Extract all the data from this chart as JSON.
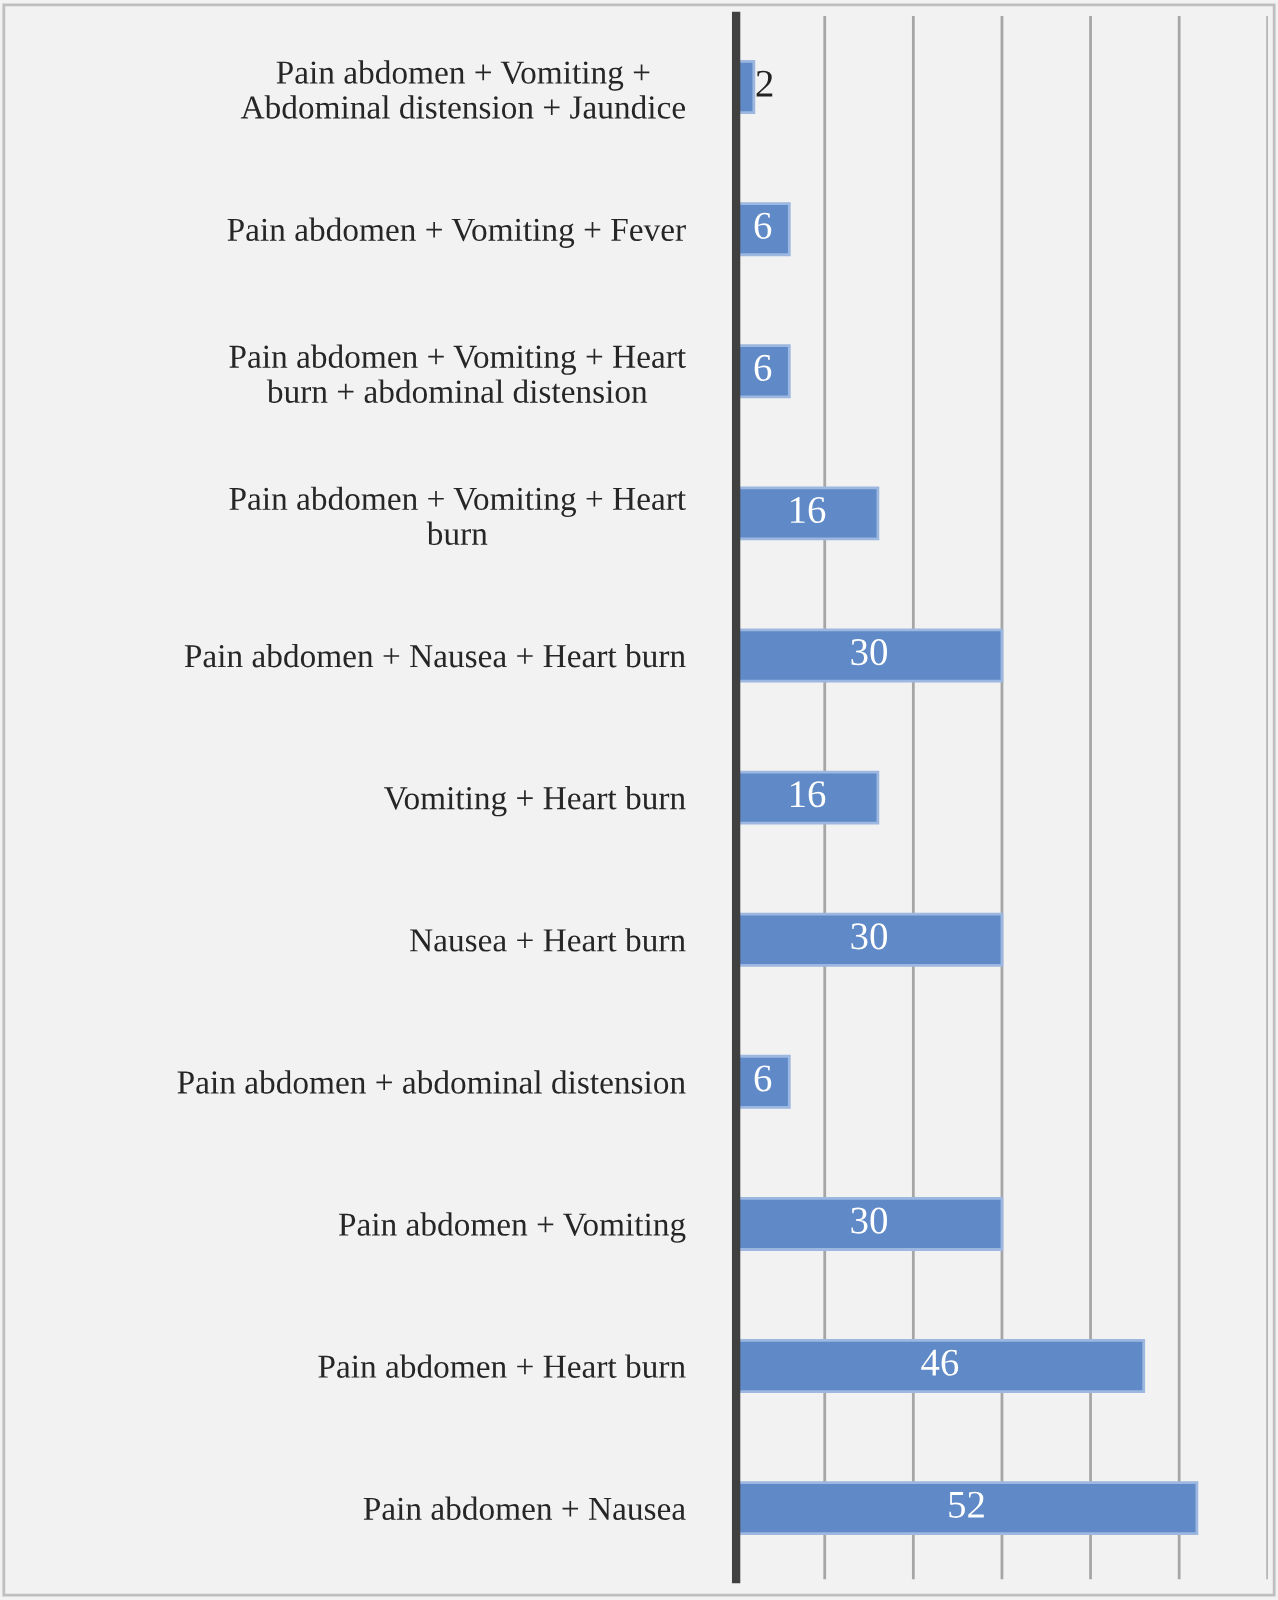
{
  "chart_data": {
    "type": "bar",
    "orientation": "horizontal",
    "categories": [
      "Pain abdomen + Vomiting +\nAbdominal distension + Jaundice",
      "Pain abdomen + Vomiting + Fever",
      "Pain abdomen + Vomiting + Heart\nburn + abdominal distension",
      "Pain abdomen + Vomiting + Heart\nburn",
      "Pain abdomen + Nausea + Heart burn",
      "Vomiting + Heart burn",
      "Nausea + Heart burn",
      "Pain abdomen + abdominal distension",
      "Pain abdomen + Vomiting",
      "Pain abdomen + Heart burn",
      "Pain abdomen + Nausea"
    ],
    "values": [
      2,
      6,
      6,
      16,
      30,
      16,
      30,
      6,
      30,
      46,
      52
    ],
    "color": "#5f8ac7",
    "xlim": [
      0,
      60
    ],
    "xticks": [
      {
        "value": 0,
        "label": null
      },
      {
        "value": 10,
        "label": null
      },
      {
        "value": 20,
        "label": null
      },
      {
        "value": 30,
        "label": null
      },
      {
        "value": 40,
        "label": null
      },
      {
        "value": 50,
        "label": null
      },
      {
        "value": 60,
        "label": null
      }
    ],
    "tick_labels": "y",
    "grid": "x",
    "data_labels": true
  }
}
